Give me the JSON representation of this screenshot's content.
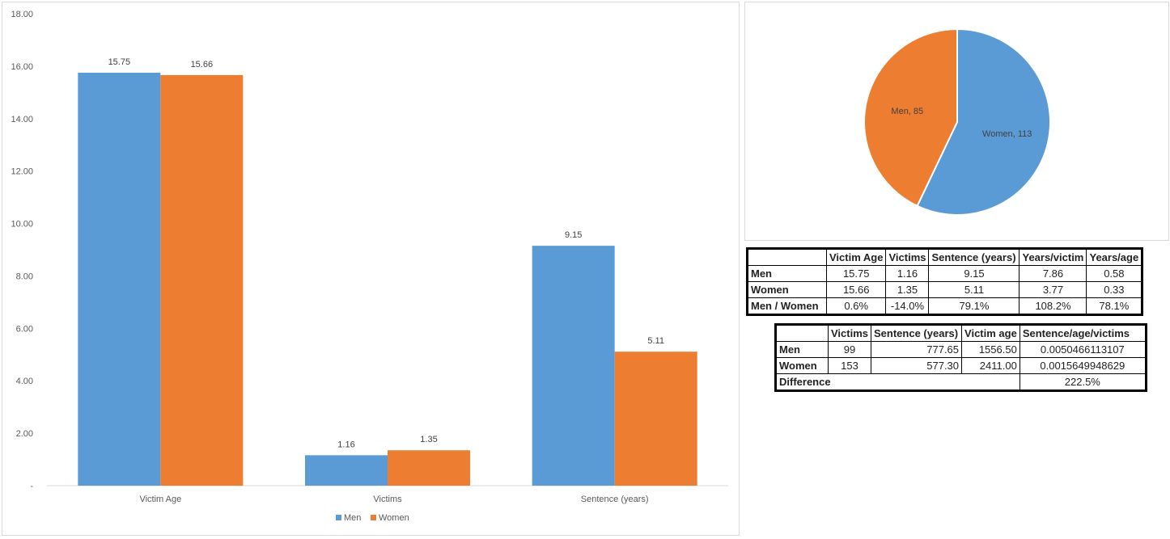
{
  "chart_data": [
    {
      "type": "bar",
      "categories": [
        "Victim Age",
        "Victims",
        "Sentence (years)"
      ],
      "series": [
        {
          "name": "Men",
          "values": [
            15.75,
            1.16,
            9.15
          ],
          "labels": [
            "15.75",
            "1.16",
            "9.15"
          ],
          "color": "#5b9bd5"
        },
        {
          "name": "Women",
          "values": [
            15.66,
            1.35,
            5.11
          ],
          "labels": [
            "15.66",
            "1.35",
            "5.11"
          ],
          "color": "#ed7d31"
        }
      ],
      "ylim": [
        0,
        18
      ],
      "yticks": [
        {
          "value": 0,
          "label": "-"
        },
        {
          "value": 2,
          "label": "2.00"
        },
        {
          "value": 4,
          "label": "4.00"
        },
        {
          "value": 6,
          "label": "6.00"
        },
        {
          "value": 8,
          "label": "8.00"
        },
        {
          "value": 10,
          "label": "10.00"
        },
        {
          "value": 12,
          "label": "12.00"
        },
        {
          "value": 14,
          "label": "14.00"
        },
        {
          "value": 16,
          "label": "16.00"
        },
        {
          "value": 18,
          "label": "18.00"
        }
      ],
      "legend_position": "bottom",
      "grid": false
    },
    {
      "type": "pie",
      "slices": [
        {
          "name": "Women",
          "value": 113,
          "label": "Women, 113",
          "color": "#5b9bd5"
        },
        {
          "name": "Men",
          "value": 85,
          "label": "Men, 85",
          "color": "#ed7d31"
        }
      ]
    }
  ],
  "table1": {
    "headers": [
      "Victim Age",
      "Victims",
      "Sentence (years)",
      "Years/victim",
      "Years/age"
    ],
    "rows": [
      {
        "label": "Men",
        "cells": [
          "15.75",
          "1.16",
          "9.15",
          "7.86",
          "0.58"
        ]
      },
      {
        "label": "Women",
        "cells": [
          "15.66",
          "1.35",
          "5.11",
          "3.77",
          "0.33"
        ]
      },
      {
        "label": "Men / Women",
        "cells": [
          "0.6%",
          "-14.0%",
          "79.1%",
          "108.2%",
          "78.1%"
        ]
      }
    ]
  },
  "table2": {
    "headers": [
      "Victims",
      "Sentence (years)",
      "Victim age",
      "Sentence/age/victims"
    ],
    "rows": [
      {
        "label": "Men",
        "cells": [
          "99",
          "777.65",
          "1556.50",
          "0.0050466113107"
        ]
      },
      {
        "label": "Women",
        "cells": [
          "153",
          "577.30",
          "2411.00",
          "0.0015649948629"
        ]
      }
    ],
    "difference": {
      "label": "Difference",
      "value": "222.5%"
    }
  }
}
